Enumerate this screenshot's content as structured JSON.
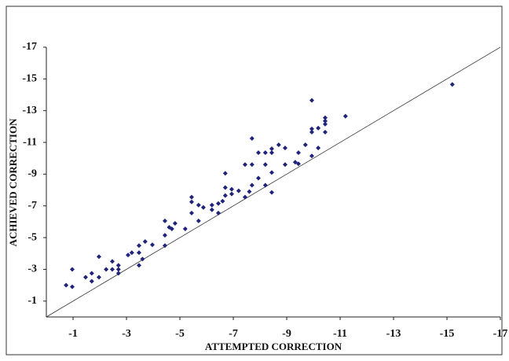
{
  "chart_data": {
    "type": "scatter",
    "xlabel": "ATTEMPTED CORRECTION",
    "ylabel": "ACHIEVED CORRECTION",
    "color": "#1f237a",
    "x": [
      -0.74,
      -0.97,
      -0.97,
      -1.47,
      -1.7,
      -1.7,
      -1.97,
      -1.97,
      -2.24,
      -2.47,
      -2.47,
      -2.7,
      -2.7,
      -2.7,
      -3.06,
      -3.2,
      -3.47,
      -3.47,
      -3.47,
      -3.6,
      -3.7,
      -3.97,
      -4.44,
      -4.44,
      -4.44,
      -4.6,
      -4.7,
      -4.82,
      -5.2,
      -5.44,
      -5.44,
      -5.44,
      -5.7,
      -5.7,
      -5.88,
      -6.2,
      -6.2,
      -6.44,
      -6.44,
      -6.6,
      -6.7,
      -6.7,
      -6.7,
      -6.94,
      -6.94,
      -7.2,
      -7.44,
      -7.44,
      -7.6,
      -7.7,
      -7.7,
      -7.7,
      -7.94,
      -7.94,
      -8.2,
      -8.2,
      -8.2,
      -8.44,
      -8.44,
      -8.44,
      -8.44,
      -8.7,
      -8.94,
      -8.94,
      -9.32,
      -9.44,
      -9.44,
      -9.7,
      -9.94,
      -9.94,
      -9.94,
      -9.94,
      -10.18,
      -10.18,
      -10.44,
      -10.44,
      -10.44,
      -10.44,
      -11.2,
      -15.2
    ],
    "values": [
      -2.0,
      -3.0,
      -1.9,
      -2.5,
      -2.75,
      -2.25,
      -3.8,
      -2.5,
      -3.0,
      -3.5,
      -3.0,
      -3.25,
      -3.0,
      -2.75,
      -3.9,
      -4.05,
      -4.5,
      -4.05,
      -3.25,
      -3.65,
      -4.75,
      -4.55,
      -6.05,
      -5.15,
      -4.5,
      -5.65,
      -5.55,
      -5.9,
      -5.55,
      -7.55,
      -7.25,
      -6.55,
      -7.05,
      -6.05,
      -6.9,
      -7.05,
      -6.75,
      -7.15,
      -6.55,
      -7.3,
      -8.15,
      -7.65,
      -9.05,
      -8.05,
      -7.75,
      -7.95,
      -7.55,
      -9.6,
      -7.9,
      -11.25,
      -9.6,
      -8.3,
      -8.75,
      -10.35,
      -9.6,
      -10.35,
      -8.3,
      -10.35,
      -10.6,
      -7.85,
      -9.1,
      -10.85,
      -9.6,
      -10.65,
      -9.75,
      -9.65,
      -10.35,
      -10.85,
      -10.15,
      -13.65,
      -11.65,
      -11.85,
      -10.65,
      -11.9,
      -11.65,
      -12.15,
      -12.55,
      -12.35,
      -12.65,
      -14.65
    ],
    "xlim": [
      0,
      -17
    ],
    "xticks": [
      -1,
      -3,
      -5,
      -7,
      -9,
      -11,
      -13,
      -15,
      -17
    ],
    "ylim": [
      0,
      -17
    ],
    "yticks": [
      -1,
      -3,
      -5,
      -7,
      -9,
      -11,
      -13,
      -15,
      -17
    ]
  }
}
